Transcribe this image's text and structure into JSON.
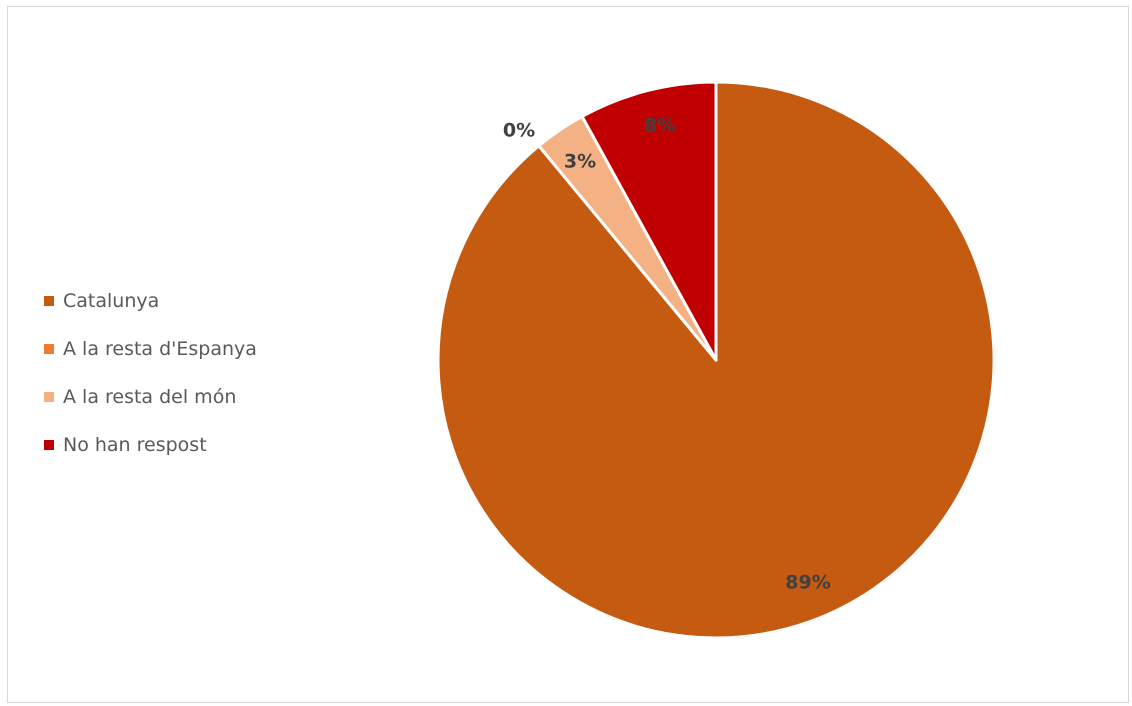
{
  "chart_data": {
    "type": "pie",
    "title": "",
    "categories": [
      "Catalunya",
      "A la resta d'Espanya",
      "A la resta del món",
      "No han respost"
    ],
    "values": [
      89,
      0,
      3,
      8
    ],
    "data_labels": [
      "89%",
      "0%",
      "3%",
      "8%"
    ],
    "colors": [
      "#C55A11",
      "#ED7D31",
      "#F4B183",
      "#C00000"
    ],
    "legend_position": "left",
    "start_angle_deg": 0,
    "direction": "clockwise"
  }
}
